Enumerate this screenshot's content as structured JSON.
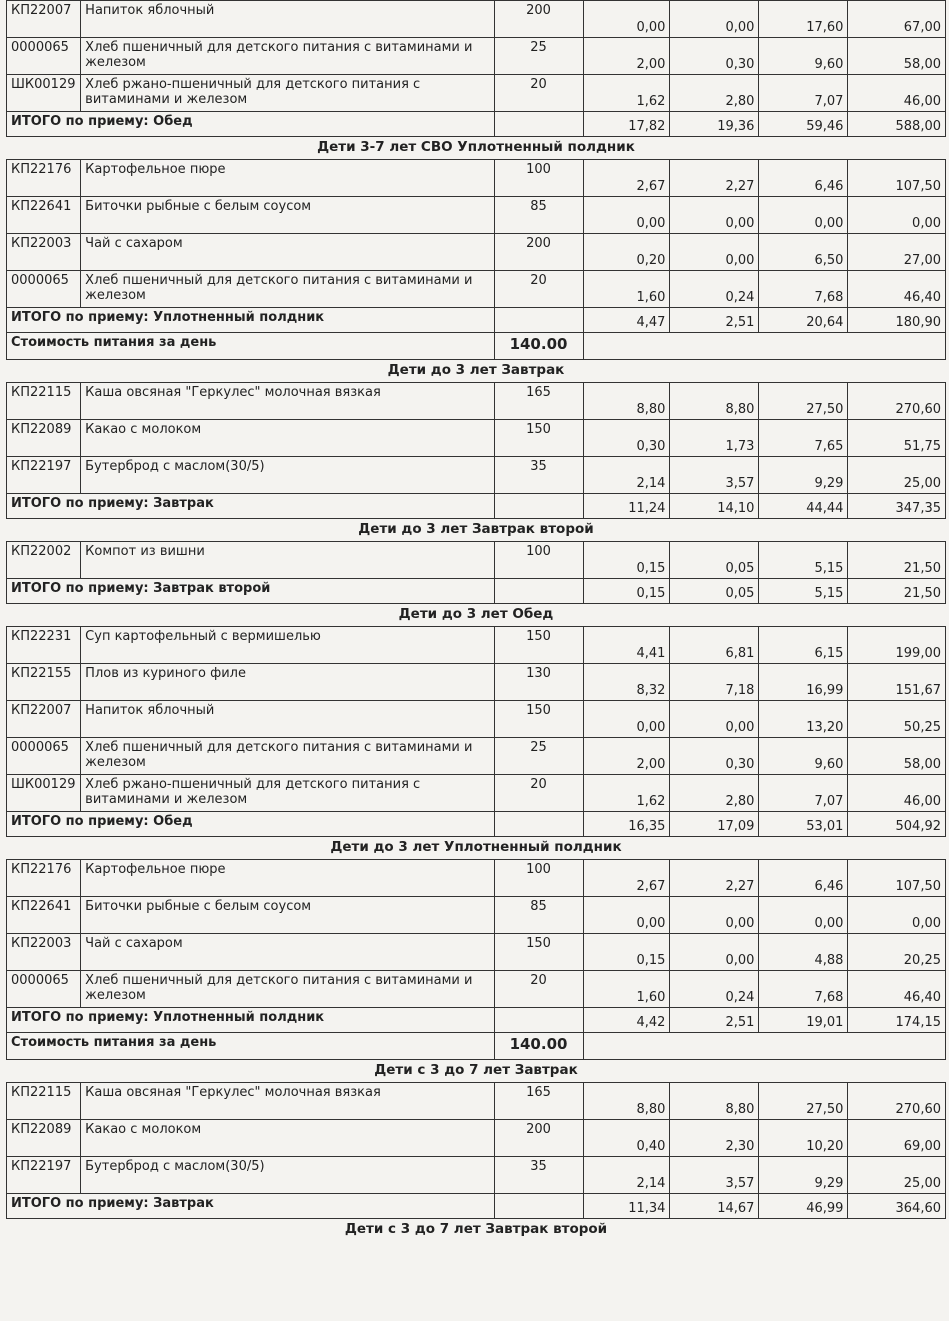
{
  "blocks": [
    {
      "rows": [
        [
          "КП22007",
          "Напиток яблочный",
          "200",
          "0,00",
          "0,00",
          "17,60",
          "67,00"
        ],
        [
          "0000065",
          "Хлеб пшеничный для детского питания с витаминами и железом",
          "25",
          "2,00",
          "0,30",
          "9,60",
          "58,00"
        ],
        [
          "ШК00129",
          "Хлеб ржано-пшеничный для детского питания с витаминами и железом",
          "20",
          "1,62",
          "2,80",
          "7,07",
          "46,00"
        ]
      ],
      "total": [
        "ИТОГО по приему: Обед",
        "17,82",
        "19,36",
        "59,46",
        "588,00"
      ]
    },
    {
      "title": "Дети 3-7 лет СВО Уплотненный полдник",
      "rows": [
        [
          "КП22176",
          "Картофельное пюре",
          "100",
          "2,67",
          "2,27",
          "6,46",
          "107,50"
        ],
        [
          "КП22641",
          "Биточки рыбные с белым соусом",
          "85",
          "0,00",
          "0,00",
          "0,00",
          "0,00"
        ],
        [
          "КП22003",
          "Чай с сахаром",
          "200",
          "0,20",
          "0,00",
          "6,50",
          "27,00"
        ],
        [
          "0000065",
          "Хлеб пшеничный для детского питания с витаминами и железом",
          "20",
          "1,60",
          "0,24",
          "7,68",
          "46,40"
        ]
      ],
      "total": [
        "ИТОГО по приему: Уплотненный полдник",
        "4,47",
        "2,51",
        "20,64",
        "180,90"
      ],
      "cost": [
        "Стоимость питания за день",
        "140.00"
      ]
    },
    {
      "title": "Дети до 3 лет Завтрак",
      "rows": [
        [
          "КП22115",
          "Каша овсяная \"Геркулес\" молочная вязкая",
          "165",
          "8,80",
          "8,80",
          "27,50",
          "270,60"
        ],
        [
          "КП22089",
          "Какао с молоком",
          "150",
          "0,30",
          "1,73",
          "7,65",
          "51,75"
        ],
        [
          "КП22197",
          "Бутерброд с маслом(30/5)",
          "35",
          "2,14",
          "3,57",
          "9,29",
          "25,00"
        ]
      ],
      "total": [
        "ИТОГО по приему: Завтрак",
        "11,24",
        "14,10",
        "44,44",
        "347,35"
      ]
    },
    {
      "title": "Дети до 3 лет Завтрак второй",
      "rows": [
        [
          "КП22002",
          "Компот из вишни",
          "100",
          "0,15",
          "0,05",
          "5,15",
          "21,50"
        ]
      ],
      "total": [
        "ИТОГО по приему: Завтрак второй",
        "0,15",
        "0,05",
        "5,15",
        "21,50"
      ]
    },
    {
      "title": "Дети до 3 лет Обед",
      "rows": [
        [
          "КП22231",
          "Суп картофельный с вермишелью",
          "150",
          "4,41",
          "6,81",
          "6,15",
          "199,00"
        ],
        [
          "КП22155",
          "Плов из куриного филе",
          "130",
          "8,32",
          "7,18",
          "16,99",
          "151,67"
        ],
        [
          "КП22007",
          "Напиток яблочный",
          "150",
          "0,00",
          "0,00",
          "13,20",
          "50,25"
        ],
        [
          "0000065",
          "Хлеб пшеничный для детского питания с витаминами и железом",
          "25",
          "2,00",
          "0,30",
          "9,60",
          "58,00"
        ],
        [
          "ШК00129",
          "Хлеб ржано-пшеничный для детского питания с витаминами и железом",
          "20",
          "1,62",
          "2,80",
          "7,07",
          "46,00"
        ]
      ],
      "total": [
        "ИТОГО по приему: Обед",
        "16,35",
        "17,09",
        "53,01",
        "504,92"
      ]
    },
    {
      "title": "Дети до 3 лет Уплотненный полдник",
      "rows": [
        [
          "КП22176",
          "Картофельное пюре",
          "100",
          "2,67",
          "2,27",
          "6,46",
          "107,50"
        ],
        [
          "КП22641",
          "Биточки рыбные с белым соусом",
          "85",
          "0,00",
          "0,00",
          "0,00",
          "0,00"
        ],
        [
          "КП22003",
          "Чай с сахаром",
          "150",
          "0,15",
          "0,00",
          "4,88",
          "20,25"
        ],
        [
          "0000065",
          "Хлеб пшеничный для детского питания с витаминами и железом",
          "20",
          "1,60",
          "0,24",
          "7,68",
          "46,40"
        ]
      ],
      "total": [
        "ИТОГО по приему: Уплотненный полдник",
        "4,42",
        "2,51",
        "19,01",
        "174,15"
      ],
      "cost": [
        "Стоимость питания за день",
        "140.00"
      ]
    },
    {
      "title": "Дети с 3 до 7 лет Завтрак",
      "rows": [
        [
          "КП22115",
          "Каша овсяная \"Геркулес\" молочная вязкая",
          "165",
          "8,80",
          "8,80",
          "27,50",
          "270,60"
        ],
        [
          "КП22089",
          "Какао с молоком",
          "200",
          "0,40",
          "2,30",
          "10,20",
          "69,00"
        ],
        [
          "КП22197",
          "Бутерброд с маслом(30/5)",
          "35",
          "2,14",
          "3,57",
          "9,29",
          "25,00"
        ]
      ],
      "total": [
        "ИТОГО по приему: Завтрак",
        "11,34",
        "14,67",
        "46,99",
        "364,60"
      ]
    },
    {
      "title": "Дети с 3 до 7 лет Завтрак второй"
    }
  ]
}
